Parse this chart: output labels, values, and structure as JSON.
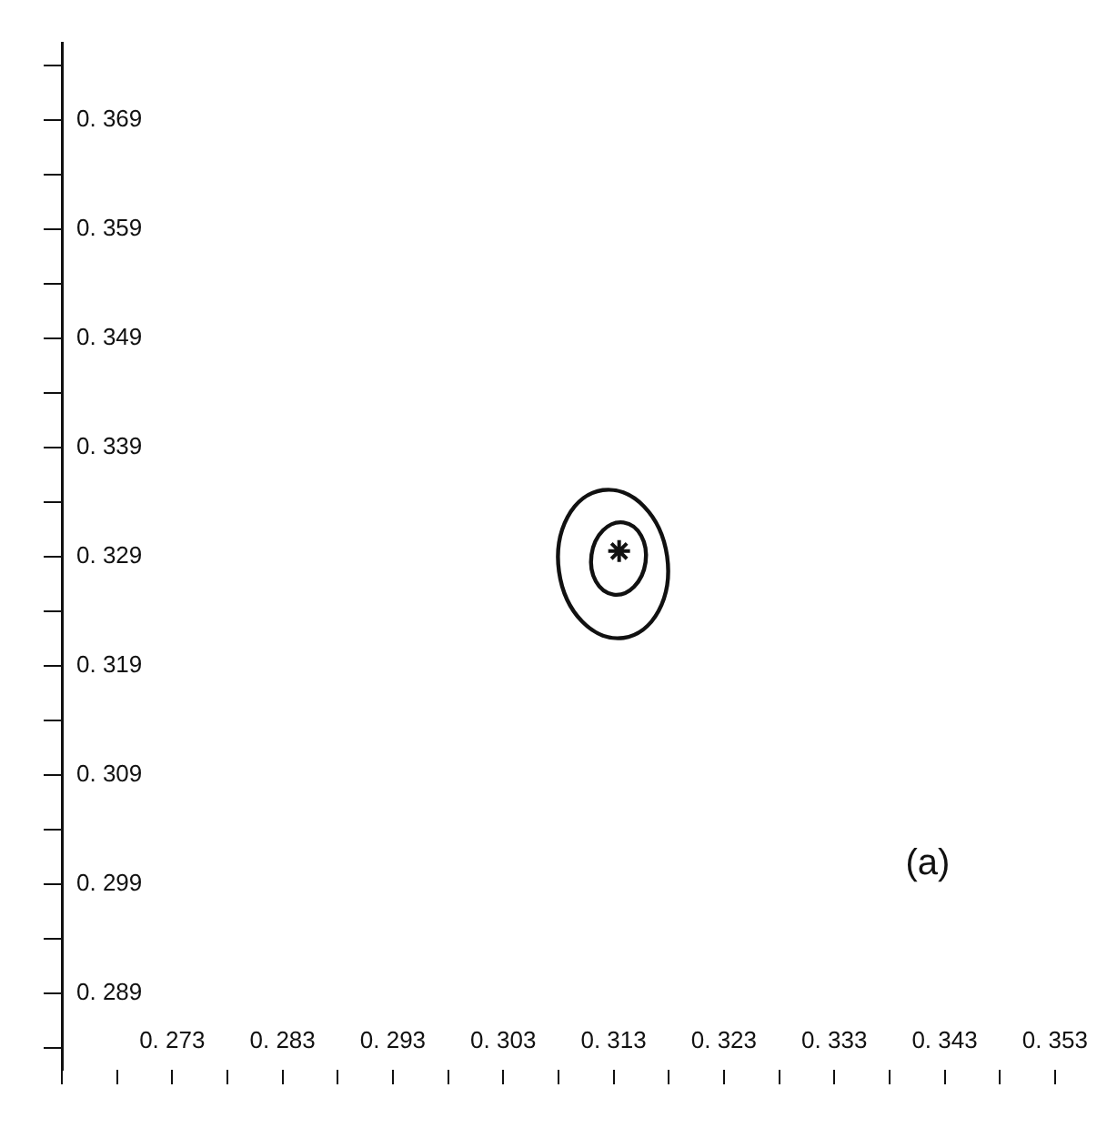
{
  "chart_data": {
    "type": "scatter",
    "xlim": [
      0.263,
      0.353
    ],
    "ylim": [
      0.282,
      0.376
    ],
    "xticks": [
      {
        "value": 0.263,
        "label": null
      },
      {
        "value": 0.268,
        "label": null
      },
      0.273,
      {
        "value": 0.278,
        "label": null
      },
      0.283,
      {
        "value": 0.288,
        "label": null
      },
      0.293,
      {
        "value": 0.298,
        "label": null
      },
      0.303,
      {
        "value": 0.308,
        "label": null
      },
      0.313,
      {
        "value": 0.318,
        "label": null
      },
      0.323,
      {
        "value": 0.328,
        "label": null
      },
      0.333,
      {
        "value": 0.338,
        "label": null
      },
      0.343,
      {
        "value": 0.348,
        "label": null
      },
      0.353
    ],
    "yticks": [
      {
        "value": 0.284,
        "label": null
      },
      0.289,
      {
        "value": 0.294,
        "label": null
      },
      0.299,
      {
        "value": 0.304,
        "label": null
      },
      0.309,
      {
        "value": 0.314,
        "label": null
      },
      0.319,
      {
        "value": 0.324,
        "label": null
      },
      0.329,
      {
        "value": 0.334,
        "label": null
      },
      0.339,
      {
        "value": 0.344,
        "label": null
      },
      0.349,
      {
        "value": 0.354,
        "label": null
      },
      0.359,
      {
        "value": 0.364,
        "label": null
      },
      0.369,
      {
        "value": 0.374,
        "label": null
      }
    ],
    "grid": false,
    "legend": false,
    "series": [
      {
        "color": "#111111",
        "marker": "cross",
        "x": [
          0.3135
        ],
        "values": [
          0.3295
        ]
      }
    ],
    "annotations": [
      "(a)"
    ]
  }
}
